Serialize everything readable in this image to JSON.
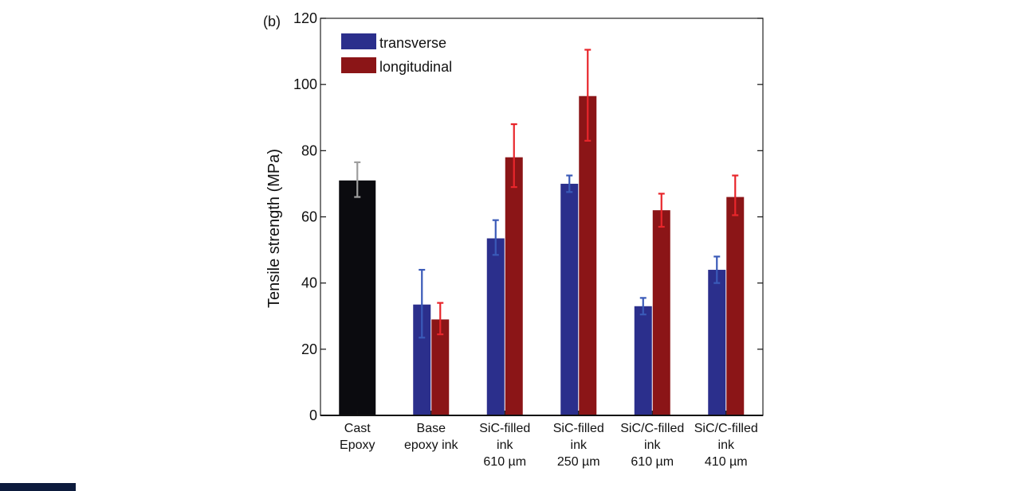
{
  "chart_data": {
    "type": "bar",
    "panel_label": "(b)",
    "ylabel": "Tensile strength (MPa)",
    "xlabel": "",
    "ylim": [
      0,
      120
    ],
    "yticks": [
      0,
      20,
      40,
      60,
      80,
      100,
      120
    ],
    "categories": [
      [
        "Cast",
        "Epoxy"
      ],
      [
        "Base",
        "epoxy ink"
      ],
      [
        "SiC-filled",
        "ink",
        "610 µm"
      ],
      [
        "SiC-filled",
        "ink",
        "250 µm"
      ],
      [
        "SiC/C-filled",
        "ink",
        "610 µm"
      ],
      [
        "SiC/C-filled",
        "ink",
        "410 µm"
      ]
    ],
    "cast_epoxy": {
      "value": 71,
      "err": [
        66,
        76.5
      ],
      "color": "#0b0b0f",
      "err_color": "#9e9e9e"
    },
    "series": [
      {
        "name": "transverse",
        "color": "#2b2f8c",
        "err_color": "#3a5ab8",
        "values": [
          null,
          33.5,
          53.5,
          70,
          33,
          44
        ],
        "err": [
          null,
          [
            23.5,
            44
          ],
          [
            48.5,
            59
          ],
          [
            67.5,
            72.5
          ],
          [
            30.5,
            35.5
          ],
          [
            40,
            48
          ]
        ]
      },
      {
        "name": "longitudinal",
        "color": "#8b1517",
        "err_color": "#e8262b",
        "values": [
          null,
          29,
          78,
          96.5,
          62,
          66
        ],
        "err": [
          null,
          [
            24.5,
            34
          ],
          [
            69,
            88
          ],
          [
            83,
            110.5
          ],
          [
            57,
            67
          ],
          [
            60.5,
            72.5
          ]
        ]
      }
    ],
    "legend": [
      "transverse",
      "longitudinal"
    ],
    "legend_position": "top-left"
  }
}
